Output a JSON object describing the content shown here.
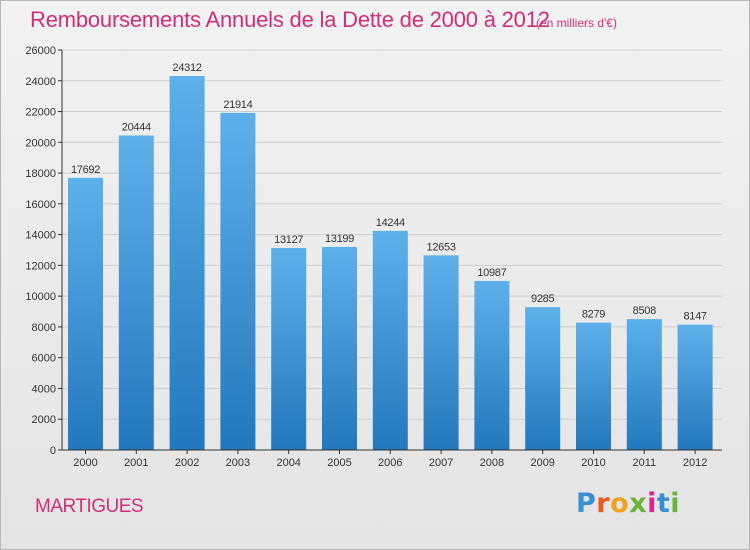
{
  "header": {
    "title": "Remboursements Annuels de la Dette de 2000 à 2012",
    "unit": "(en milliers d'€)"
  },
  "footer": {
    "city": "MARTIGUES",
    "logo": {
      "letters": [
        "P",
        "r",
        "o",
        "x",
        "i",
        "t",
        "i"
      ],
      "colors": [
        "#3a8fd0",
        "#e85a1e",
        "#f0a21e",
        "#6cb23a",
        "#e2228a",
        "#3a8fd0",
        "#6cb23a"
      ]
    }
  },
  "colors": {
    "bar_light": "#5eb0ea",
    "bar_dark": "#2378bd",
    "title": "#d22e78",
    "grid": "#cfcfcf",
    "axis": "#333333"
  },
  "chart_data": {
    "type": "bar",
    "title": "Remboursements Annuels de la Dette de 2000 à 2012",
    "unit": "(en milliers d'€)",
    "categories": [
      "2000",
      "2001",
      "2002",
      "2003",
      "2004",
      "2005",
      "2006",
      "2007",
      "2008",
      "2009",
      "2010",
      "2011",
      "2012"
    ],
    "values": [
      17692,
      20444,
      24312,
      21914,
      13127,
      13199,
      14244,
      12653,
      10987,
      9285,
      8279,
      8508,
      8147
    ],
    "ylim": [
      0,
      26000
    ],
    "yticks": [
      0,
      2000,
      4000,
      6000,
      8000,
      10000,
      12000,
      14000,
      16000,
      18000,
      20000,
      22000,
      24000,
      26000
    ],
    "grid": true,
    "legend": "none"
  }
}
